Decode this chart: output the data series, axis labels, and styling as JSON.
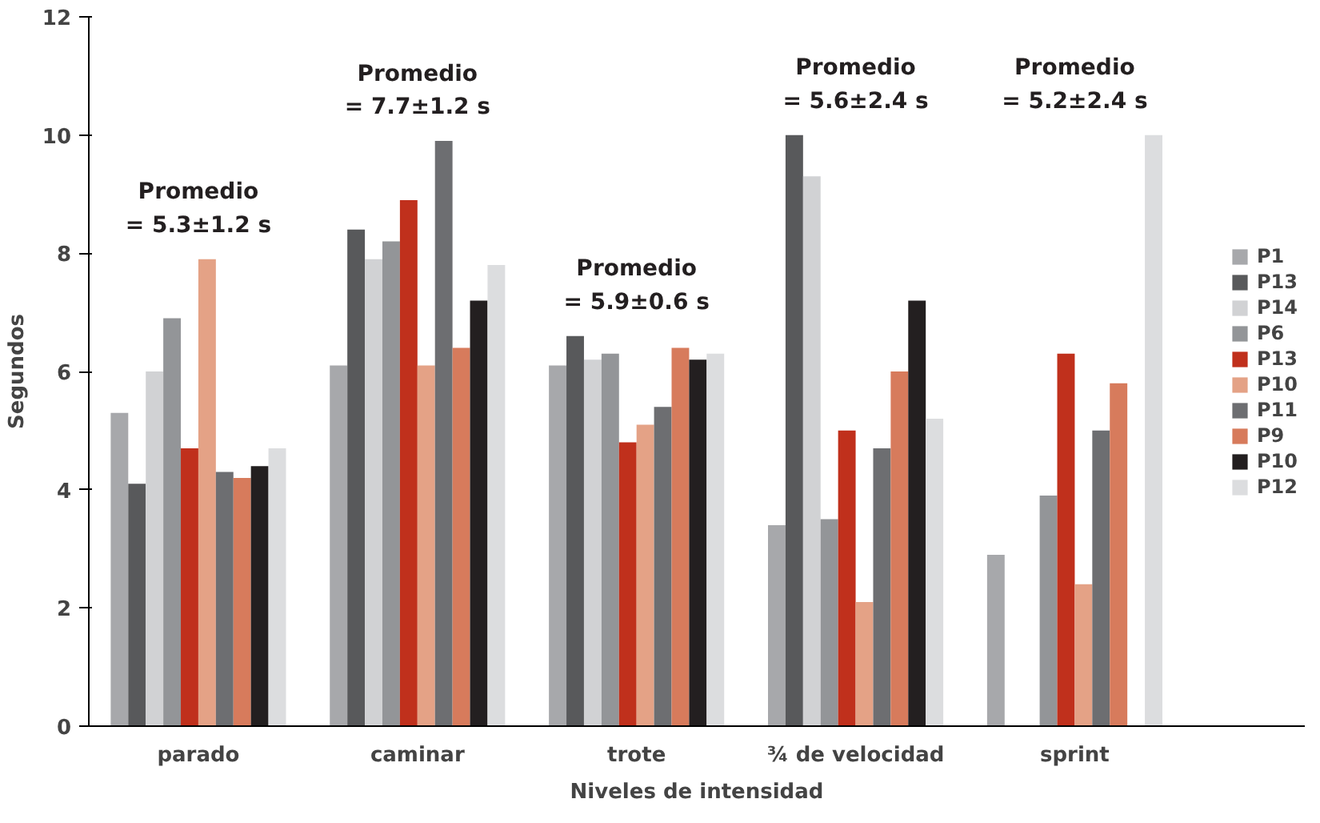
{
  "chart_data": {
    "type": "bar",
    "xlabel": "Niveles de intensidad",
    "ylabel": "Segundos",
    "categories": [
      "parado",
      "caminar",
      "trote",
      "¾ de velocidad",
      "sprint"
    ],
    "series": [
      {
        "name": "P1",
        "color": "#a7a8ab",
        "values": [
          5.3,
          6.1,
          6.1,
          3.4,
          2.9
        ]
      },
      {
        "name": "P13",
        "color": "#58595b",
        "values": [
          4.1,
          8.4,
          6.6,
          10.0,
          null
        ]
      },
      {
        "name": "P14",
        "color": "#d1d2d4",
        "values": [
          6.0,
          7.9,
          6.2,
          9.3,
          null
        ]
      },
      {
        "name": "P6",
        "color": "#939598",
        "values": [
          6.9,
          8.2,
          6.3,
          3.5,
          3.9
        ]
      },
      {
        "name": "P13",
        "color": "#c0301c",
        "values": [
          4.7,
          8.9,
          4.8,
          5.0,
          6.3
        ]
      },
      {
        "name": "P10",
        "color": "#e4a286",
        "values": [
          7.9,
          6.1,
          5.1,
          2.1,
          2.4
        ]
      },
      {
        "name": "P11",
        "color": "#6d6e71",
        "values": [
          4.3,
          9.9,
          5.4,
          4.7,
          5.0
        ]
      },
      {
        "name": "P9",
        "color": "#d77b5c",
        "values": [
          4.2,
          6.4,
          6.4,
          6.0,
          5.8
        ]
      },
      {
        "name": "P10",
        "color": "#231f20",
        "values": [
          4.4,
          7.2,
          6.2,
          7.2,
          null
        ]
      },
      {
        "name": "P12",
        "color": "#dcdddf",
        "values": [
          4.7,
          7.8,
          6.3,
          5.2,
          10.0
        ]
      }
    ],
    "ylim": [
      0,
      12
    ],
    "yticks": [
      0,
      2,
      4,
      6,
      8,
      10,
      12
    ],
    "grid": false,
    "legend": "right",
    "annotations": [
      "Promedio\n= 5.3±1.2 s",
      "Promedio\n= 7.7±1.2 s",
      "Promedio\n= 5.9±0.6 s",
      "Promedio\n= 5.6±2.4 s",
      "Promedio\n= 5.2±2.4 s"
    ]
  }
}
